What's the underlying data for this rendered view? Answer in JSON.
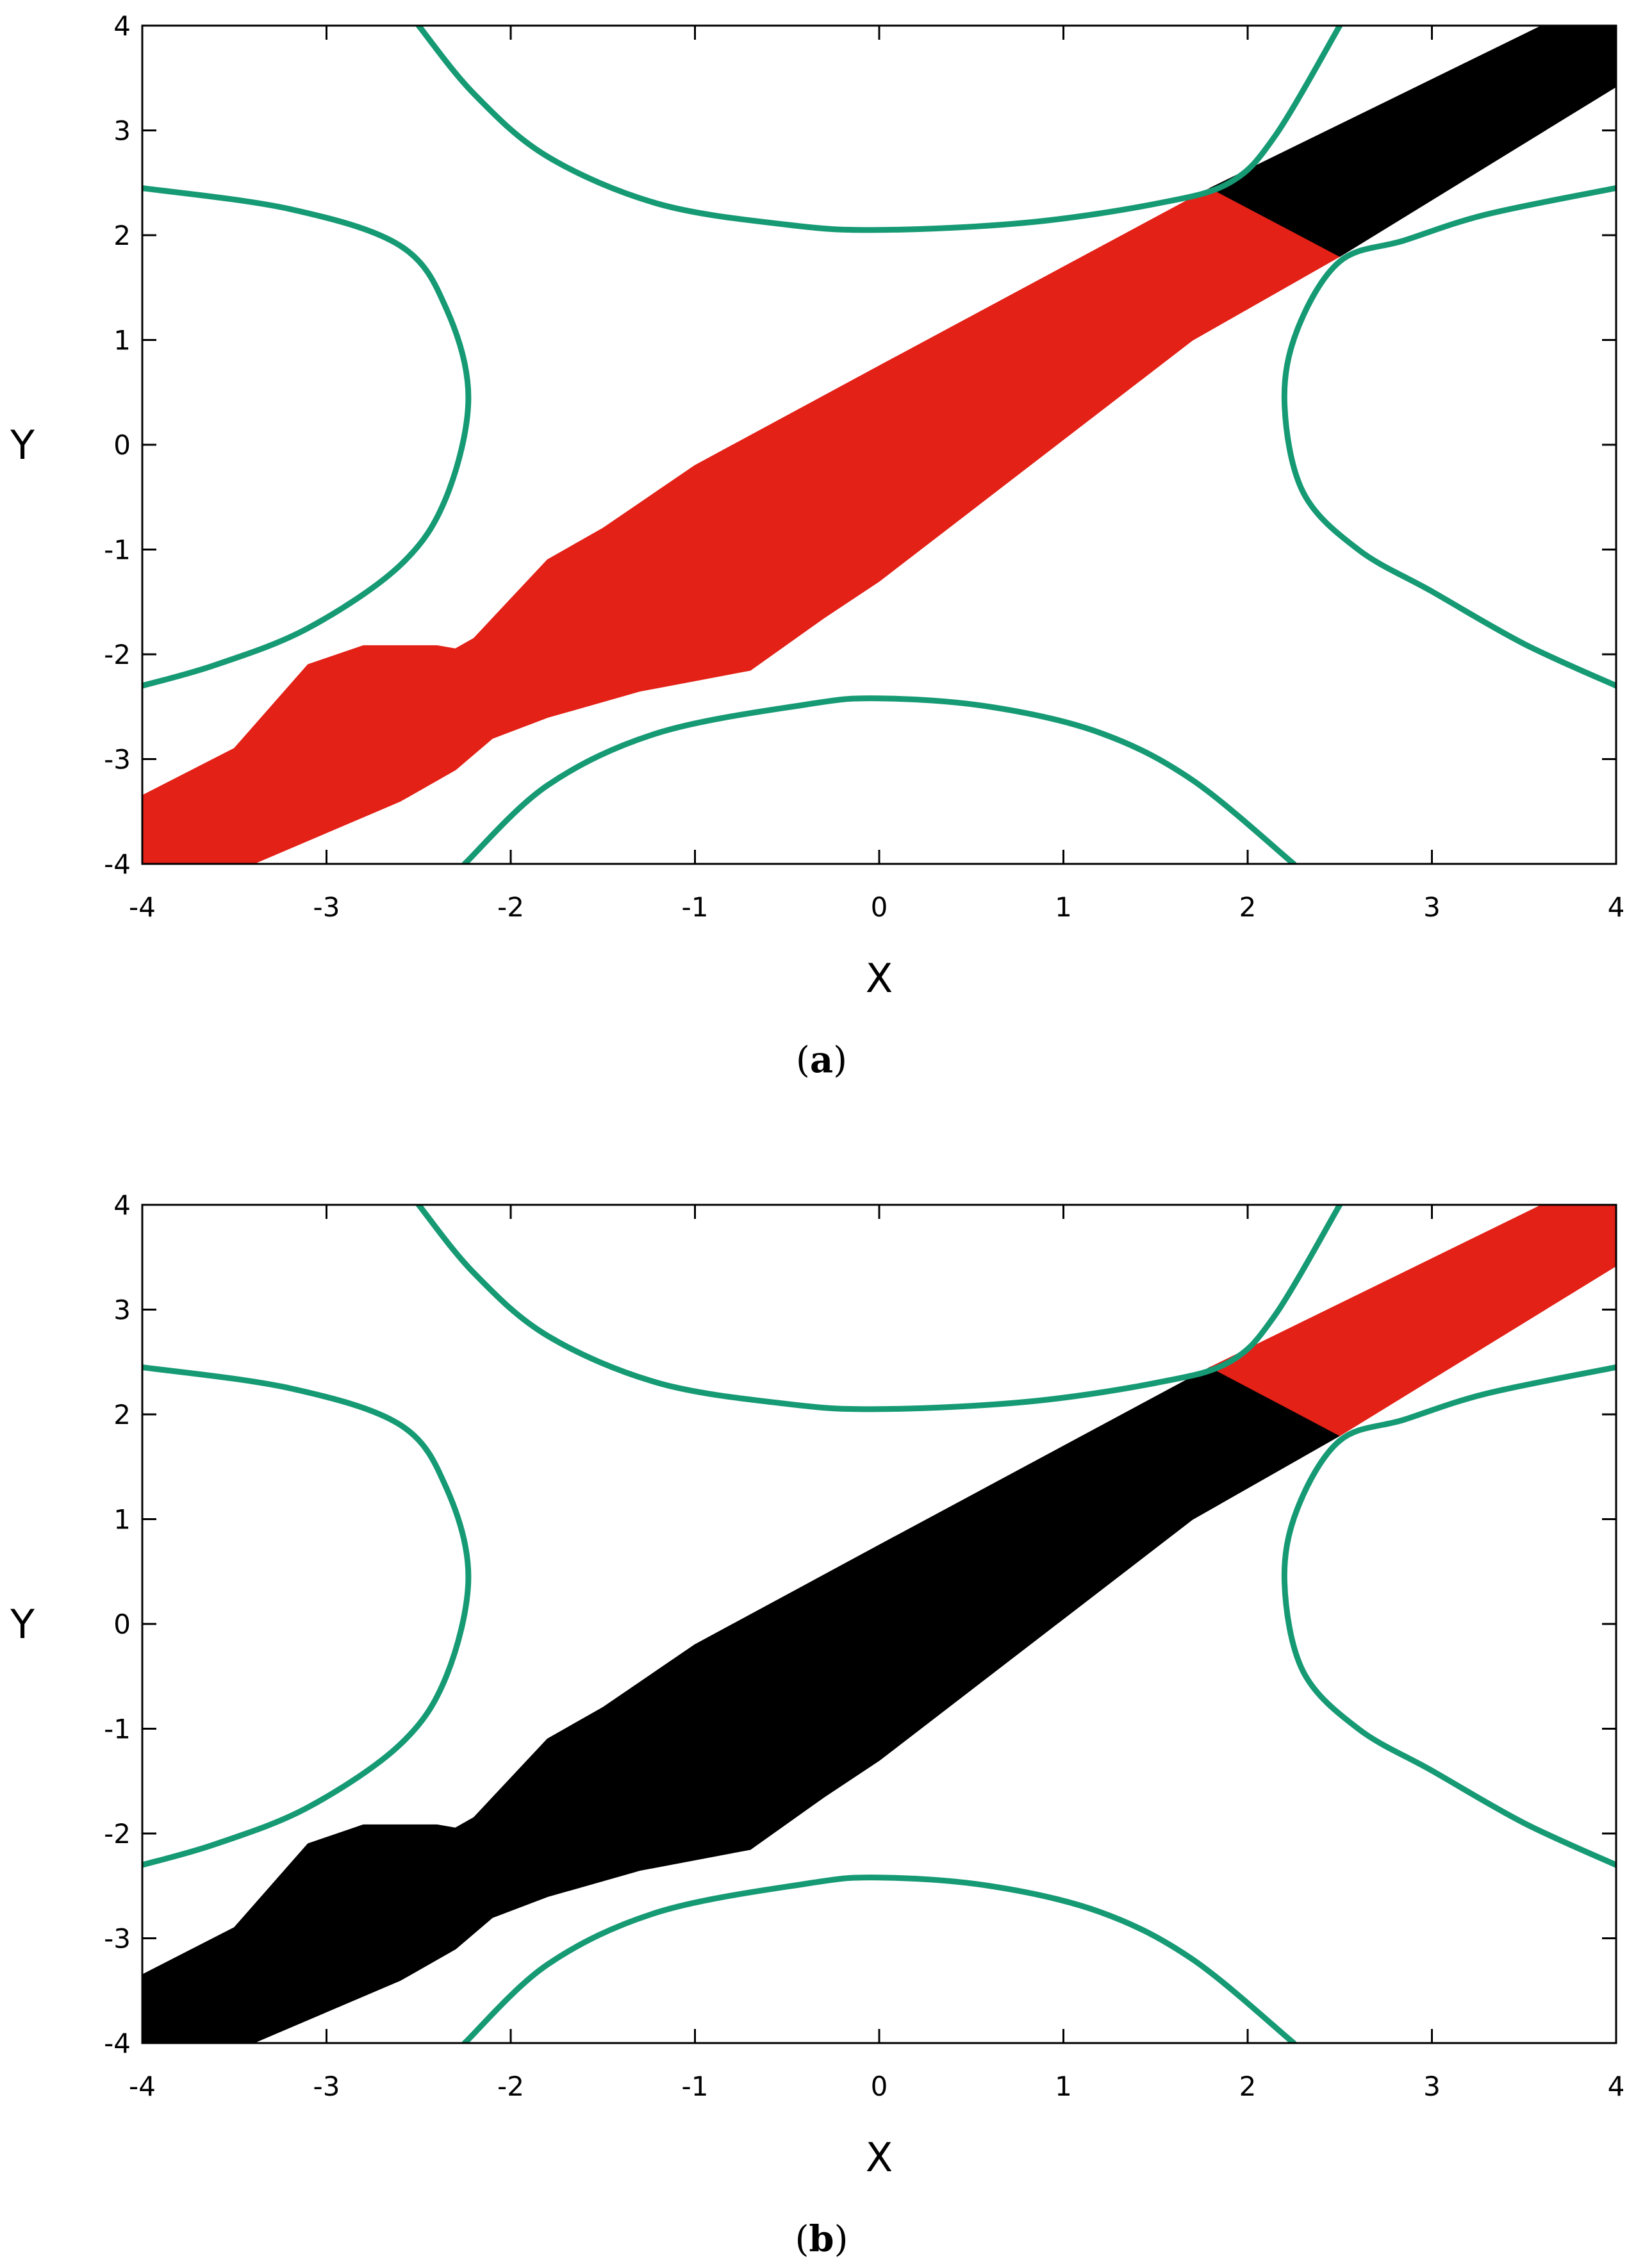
{
  "chart_data": [
    {
      "type": "area",
      "panel": "a",
      "caption_letter": "a",
      "xlabel": "X",
      "ylabel": "Y",
      "xlim": [
        -4,
        4
      ],
      "ylim": [
        -4,
        4
      ],
      "xticks": [
        "-4",
        "-3",
        "-2",
        "-1",
        "0",
        "1",
        "2",
        "3",
        "4"
      ],
      "yticks": [
        "-4",
        "-3",
        "-2",
        "-1",
        "0",
        "1",
        "2",
        "3",
        "4"
      ],
      "grid": false,
      "colors": {
        "curve": "#159a74",
        "lower_region": "#e32117",
        "upper_region": "#000000"
      },
      "curves": [
        {
          "id": "left",
          "points": [
            [
              -4,
              2.45
            ],
            [
              -3.2,
              2.25
            ],
            [
              -2.6,
              1.9
            ],
            [
              -2.35,
              1.3
            ],
            [
              -2.23,
              0.45
            ],
            [
              -2.35,
              -0.5
            ],
            [
              -2.6,
              -1.15
            ],
            [
              -3.1,
              -1.75
            ],
            [
              -3.6,
              -2.1
            ],
            [
              -4,
              -2.3
            ]
          ]
        },
        {
          "id": "top",
          "points": [
            [
              -2.5,
              4
            ],
            [
              -2.2,
              3.35
            ],
            [
              -1.8,
              2.75
            ],
            [
              -1.2,
              2.3
            ],
            [
              -0.5,
              2.1
            ],
            [
              0,
              2.05
            ],
            [
              0.8,
              2.12
            ],
            [
              1.5,
              2.3
            ],
            [
              1.9,
              2.5
            ],
            [
              2.15,
              2.95
            ],
            [
              2.5,
              4
            ]
          ]
        },
        {
          "id": "right",
          "points": [
            [
              4,
              2.45
            ],
            [
              3.3,
              2.2
            ],
            [
              2.85,
              1.95
            ],
            [
              2.5,
              1.75
            ],
            [
              2.27,
              1.1
            ],
            [
              2.2,
              0.4
            ],
            [
              2.3,
              -0.45
            ],
            [
              2.6,
              -1.0
            ],
            [
              3.0,
              -1.4
            ],
            [
              3.5,
              -1.9
            ],
            [
              4,
              -2.3
            ]
          ]
        },
        {
          "id": "bottom",
          "points": [
            [
              -2.25,
              -4
            ],
            [
              -1.8,
              -3.25
            ],
            [
              -1.2,
              -2.75
            ],
            [
              -0.4,
              -2.48
            ],
            [
              0,
              -2.42
            ],
            [
              0.6,
              -2.5
            ],
            [
              1.2,
              -2.75
            ],
            [
              1.7,
              -3.2
            ],
            [
              2.25,
              -4
            ]
          ]
        }
      ],
      "regions": [
        {
          "id": "lower",
          "color_key": "lower_region",
          "points": [
            [
              -4,
              -3.35
            ],
            [
              -3.5,
              -2.9
            ],
            [
              -3.1,
              -2.1
            ],
            [
              -2.8,
              -1.92
            ],
            [
              -2.4,
              -1.92
            ],
            [
              -2.3,
              -1.95
            ],
            [
              -2.2,
              -1.85
            ],
            [
              -1.8,
              -1.1
            ],
            [
              -1.5,
              -0.8
            ],
            [
              -1.0,
              -0.2
            ],
            [
              0,
              0.75
            ],
            [
              1.8,
              2.45
            ],
            [
              2.5,
              1.8
            ],
            [
              1.7,
              1.0
            ],
            [
              0,
              -1.3
            ],
            [
              -0.3,
              -1.65
            ],
            [
              -0.7,
              -2.15
            ],
            [
              -1.3,
              -2.35
            ],
            [
              -1.8,
              -2.6
            ],
            [
              -2.1,
              -2.8
            ],
            [
              -2.3,
              -3.1
            ],
            [
              -2.6,
              -3.4
            ],
            [
              -3.4,
              -4
            ],
            [
              -4,
              -4
            ]
          ]
        },
        {
          "id": "upper",
          "color_key": "upper_region",
          "points": [
            [
              1.8,
              2.45
            ],
            [
              3.6,
              4
            ],
            [
              4,
              4
            ],
            [
              4,
              3.42
            ],
            [
              2.5,
              1.8
            ]
          ]
        }
      ]
    },
    {
      "type": "area",
      "panel": "b",
      "caption_letter": "b",
      "xlabel": "X",
      "ylabel": "Y",
      "xlim": [
        -4,
        4
      ],
      "ylim": [
        -4,
        4
      ],
      "xticks": [
        "-4",
        "-3",
        "-2",
        "-1",
        "0",
        "1",
        "2",
        "3",
        "4"
      ],
      "yticks": [
        "-4",
        "-3",
        "-2",
        "-1",
        "0",
        "1",
        "2",
        "3",
        "4"
      ],
      "grid": false,
      "colors": {
        "curve": "#159a74",
        "lower_region": "#000000",
        "upper_region": "#e32117"
      },
      "curves": [
        {
          "id": "left",
          "points": [
            [
              -4,
              2.45
            ],
            [
              -3.2,
              2.25
            ],
            [
              -2.6,
              1.9
            ],
            [
              -2.35,
              1.3
            ],
            [
              -2.23,
              0.45
            ],
            [
              -2.35,
              -0.5
            ],
            [
              -2.6,
              -1.15
            ],
            [
              -3.1,
              -1.75
            ],
            [
              -3.6,
              -2.1
            ],
            [
              -4,
              -2.3
            ]
          ]
        },
        {
          "id": "top",
          "points": [
            [
              -2.5,
              4
            ],
            [
              -2.2,
              3.35
            ],
            [
              -1.8,
              2.75
            ],
            [
              -1.2,
              2.3
            ],
            [
              -0.5,
              2.1
            ],
            [
              0,
              2.05
            ],
            [
              0.8,
              2.12
            ],
            [
              1.5,
              2.3
            ],
            [
              1.9,
              2.5
            ],
            [
              2.15,
              2.95
            ],
            [
              2.5,
              4
            ]
          ]
        },
        {
          "id": "right",
          "points": [
            [
              4,
              2.45
            ],
            [
              3.3,
              2.2
            ],
            [
              2.85,
              1.95
            ],
            [
              2.5,
              1.75
            ],
            [
              2.27,
              1.1
            ],
            [
              2.2,
              0.4
            ],
            [
              2.3,
              -0.45
            ],
            [
              2.6,
              -1.0
            ],
            [
              3.0,
              -1.4
            ],
            [
              3.5,
              -1.9
            ],
            [
              4,
              -2.3
            ]
          ]
        },
        {
          "id": "bottom",
          "points": [
            [
              -2.25,
              -4
            ],
            [
              -1.8,
              -3.25
            ],
            [
              -1.2,
              -2.75
            ],
            [
              -0.4,
              -2.48
            ],
            [
              0,
              -2.42
            ],
            [
              0.6,
              -2.5
            ],
            [
              1.2,
              -2.75
            ],
            [
              1.7,
              -3.2
            ],
            [
              2.25,
              -4
            ]
          ]
        }
      ],
      "regions": [
        {
          "id": "lower",
          "color_key": "lower_region",
          "points": [
            [
              -4,
              -3.35
            ],
            [
              -3.5,
              -2.9
            ],
            [
              -3.1,
              -2.1
            ],
            [
              -2.8,
              -1.92
            ],
            [
              -2.4,
              -1.92
            ],
            [
              -2.3,
              -1.95
            ],
            [
              -2.2,
              -1.85
            ],
            [
              -1.8,
              -1.1
            ],
            [
              -1.5,
              -0.8
            ],
            [
              -1.0,
              -0.2
            ],
            [
              0,
              0.75
            ],
            [
              1.8,
              2.45
            ],
            [
              2.5,
              1.8
            ],
            [
              1.7,
              1.0
            ],
            [
              0,
              -1.3
            ],
            [
              -0.3,
              -1.65
            ],
            [
              -0.7,
              -2.15
            ],
            [
              -1.3,
              -2.35
            ],
            [
              -1.8,
              -2.6
            ],
            [
              -2.1,
              -2.8
            ],
            [
              -2.3,
              -3.1
            ],
            [
              -2.6,
              -3.4
            ],
            [
              -3.4,
              -4
            ],
            [
              -4,
              -4
            ]
          ]
        },
        {
          "id": "upper",
          "color_key": "upper_region",
          "points": [
            [
              1.8,
              2.45
            ],
            [
              3.6,
              4
            ],
            [
              4,
              4
            ],
            [
              4,
              3.42
            ],
            [
              2.5,
              1.8
            ]
          ]
        }
      ]
    }
  ]
}
